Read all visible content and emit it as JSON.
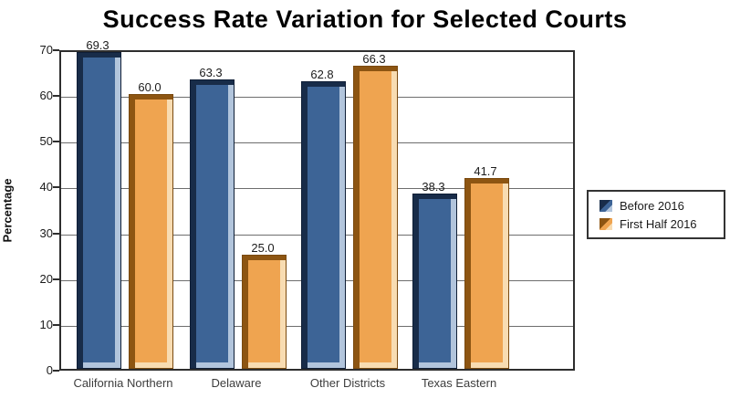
{
  "chart_data": {
    "type": "bar",
    "title": "Success Rate Variation for Selected Courts",
    "xlabel": "",
    "ylabel": "Percentage",
    "ylim": [
      0,
      70
    ],
    "yticks": [
      0,
      10,
      20,
      30,
      40,
      50,
      60,
      70
    ],
    "grid": true,
    "legend_position": "right",
    "categories": [
      "California Northern",
      "Delaware",
      "Other Districts",
      "Texas Eastern"
    ],
    "series": [
      {
        "name": "Before 2016",
        "values": [
          69.3,
          63.3,
          62.8,
          38.3
        ],
        "face_color": "#3d6496",
        "dark_bevel_color": "#182c49",
        "light_bevel_color": "#b2c5dc",
        "outline_color": "#0f1e36"
      },
      {
        "name": "First Half 2016",
        "values": [
          60.0,
          25.0,
          66.3,
          41.7
        ],
        "face_color": "#efa450",
        "dark_bevel_color": "#8d5512",
        "light_bevel_color": "#f8dcb2",
        "outline_color": "#7a4a10"
      }
    ]
  }
}
